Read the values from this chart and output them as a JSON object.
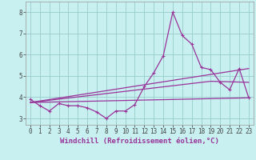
{
  "xlabel": "Windchill (Refroidissement éolien,°C)",
  "background_color": "#c8f0f0",
  "line_color": "#993399",
  "grid_color": "#99cccc",
  "xlim": [
    -0.5,
    23.5
  ],
  "ylim": [
    2.7,
    8.5
  ],
  "yticks": [
    3,
    4,
    5,
    6,
    7,
    8
  ],
  "xticks": [
    0,
    1,
    2,
    3,
    4,
    5,
    6,
    7,
    8,
    9,
    10,
    11,
    12,
    13,
    14,
    15,
    16,
    17,
    18,
    19,
    20,
    21,
    22,
    23
  ],
  "series1_x": [
    0,
    1,
    2,
    3,
    4,
    5,
    6,
    7,
    8,
    9,
    10,
    11,
    12,
    13,
    14,
    15,
    16,
    17,
    18,
    19,
    20,
    21,
    22,
    23
  ],
  "series1_y": [
    3.9,
    3.6,
    3.35,
    3.7,
    3.6,
    3.6,
    3.5,
    3.3,
    3.0,
    3.35,
    3.35,
    3.65,
    4.5,
    5.15,
    5.95,
    8.0,
    6.9,
    6.5,
    5.4,
    5.3,
    4.7,
    4.35,
    5.35,
    3.97
  ],
  "series2_x": [
    0,
    23
  ],
  "series2_y": [
    3.75,
    3.97
  ],
  "series3_x": [
    0,
    23
  ],
  "series3_y": [
    3.75,
    5.35
  ],
  "series4_x": [
    0,
    19,
    23
  ],
  "series4_y": [
    3.75,
    4.75,
    4.7
  ],
  "tick_fontsize": 5.5,
  "xlabel_fontsize": 6.5
}
